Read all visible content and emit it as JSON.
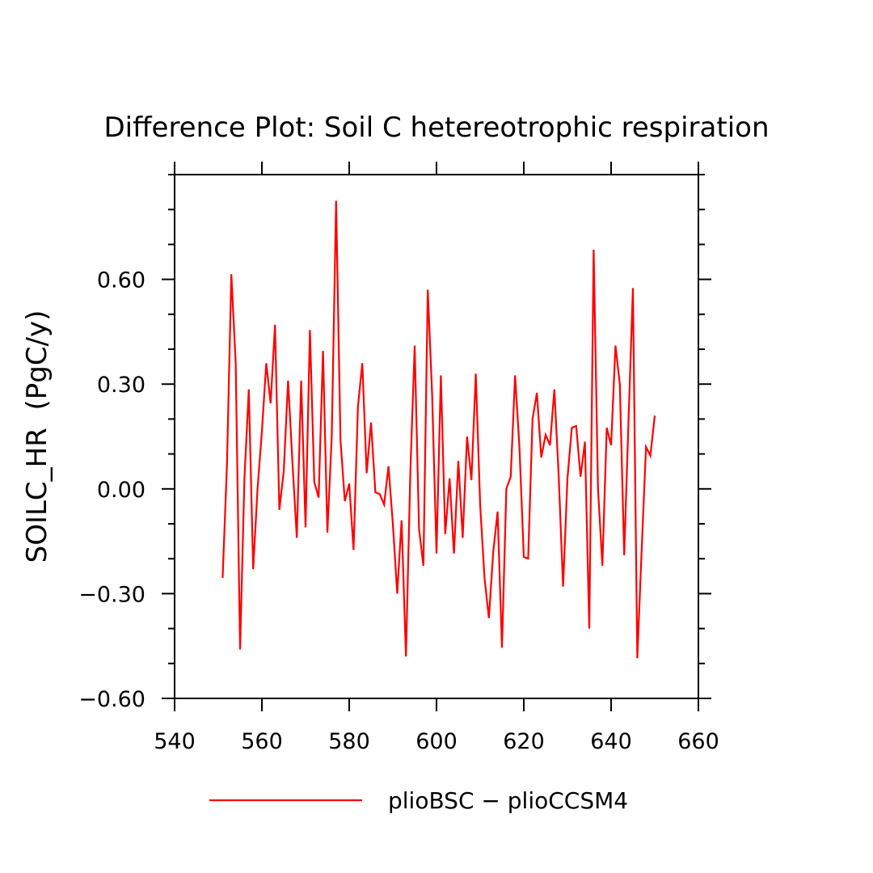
{
  "chart_data": {
    "type": "line",
    "title": "Difference Plot: Soil C hetereotrophic respiration",
    "xlabel": "",
    "ylabel": "SOILC_HR  (PgC/y)",
    "xlim": [
      540,
      660
    ],
    "ylim": [
      -0.6,
      0.9
    ],
    "x_ticks": [
      540,
      560,
      580,
      600,
      620,
      640,
      660
    ],
    "x_tick_labels": [
      "540",
      "560",
      "580",
      "600",
      "620",
      "640",
      "660"
    ],
    "y_ticks": [
      -0.6,
      -0.3,
      0.0,
      0.3,
      0.6
    ],
    "y_tick_labels": [
      "−0.60",
      "−0.30",
      "0.00",
      "0.30",
      "0.60"
    ],
    "grid": false,
    "legend_position": "bottom",
    "series": [
      {
        "name": "plioBSC − plioCCSM4",
        "color": "#ff0000",
        "x": [
          551,
          552,
          553,
          554,
          555,
          556,
          557,
          558,
          559,
          560,
          561,
          562,
          563,
          564,
          565,
          566,
          567,
          568,
          569,
          570,
          571,
          572,
          573,
          574,
          575,
          576,
          577,
          578,
          579,
          580,
          581,
          582,
          583,
          584,
          585,
          586,
          587,
          588,
          589,
          590,
          591,
          592,
          593,
          594,
          595,
          596,
          597,
          598,
          599,
          600,
          601,
          602,
          603,
          604,
          605,
          606,
          607,
          608,
          609,
          610,
          611,
          612,
          613,
          614,
          615,
          616,
          617,
          618,
          619,
          620,
          621,
          622,
          623,
          624,
          625,
          626,
          627,
          628,
          629,
          630,
          631,
          632,
          633,
          634,
          635,
          636,
          637,
          638,
          639,
          640,
          641,
          642,
          643,
          644,
          645,
          646,
          647,
          648,
          649,
          650
        ],
        "values": [
          -0.255,
          0.07,
          0.615,
          0.36,
          -0.46,
          0.03,
          0.285,
          -0.23,
          0.0,
          0.165,
          0.36,
          0.245,
          0.47,
          -0.06,
          0.05,
          0.31,
          0.075,
          -0.14,
          0.31,
          -0.11,
          0.455,
          0.02,
          -0.025,
          0.395,
          -0.125,
          0.15,
          0.825,
          0.14,
          -0.035,
          0.015,
          -0.175,
          0.235,
          0.36,
          0.045,
          0.19,
          -0.01,
          -0.015,
          -0.045,
          0.065,
          -0.1,
          -0.3,
          -0.09,
          -0.48,
          0.045,
          0.41,
          -0.115,
          -0.22,
          0.57,
          0.27,
          -0.185,
          0.325,
          -0.13,
          0.03,
          -0.185,
          0.08,
          -0.14,
          0.15,
          0.025,
          0.33,
          -0.045,
          -0.255,
          -0.37,
          -0.18,
          -0.065,
          -0.455,
          0.0,
          0.035,
          0.325,
          0.12,
          -0.195,
          -0.2,
          0.2,
          0.275,
          0.09,
          0.155,
          0.125,
          0.285,
          0.035,
          -0.28,
          0.03,
          0.175,
          0.18,
          0.035,
          0.135,
          -0.4,
          0.685,
          0.0,
          -0.22,
          0.175,
          0.125,
          0.41,
          0.3,
          -0.19,
          0.2,
          0.575,
          -0.485,
          -0.175,
          0.12,
          0.095,
          0.21
        ]
      }
    ]
  }
}
